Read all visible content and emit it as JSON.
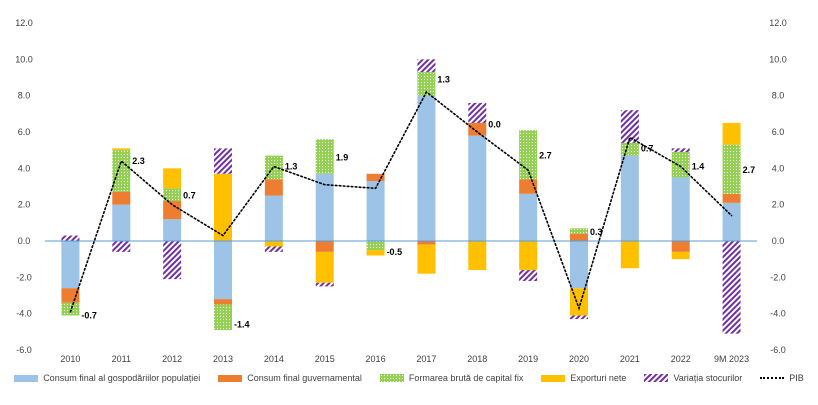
{
  "chart_data": {
    "type": "bar",
    "stacked": true,
    "categories": [
      "2010",
      "2011",
      "2012",
      "2013",
      "2014",
      "2015",
      "2016",
      "2017",
      "2018",
      "2019",
      "2020",
      "2021",
      "2022",
      "9M 2023"
    ],
    "ylim": [
      -6,
      12
    ],
    "yticks": [
      "-6.0",
      "-4.0",
      "-2.0",
      "0.0",
      "2.0",
      "4.0",
      "6.0",
      "8.0",
      "10.0",
      "12.0"
    ],
    "ytick_values": [
      -6,
      -4,
      -2,
      0,
      2,
      4,
      6,
      8,
      10,
      12
    ],
    "grid": false,
    "legend_position": "bottom",
    "series": [
      {
        "name": "Consum final al gospodăriilor populației",
        "color": "#9dc3e6",
        "pattern": "solid",
        "values": [
          -2.6,
          2.0,
          1.2,
          -3.2,
          2.5,
          3.7,
          3.3,
          8.0,
          5.8,
          2.6,
          -2.6,
          4.7,
          3.5,
          2.1
        ]
      },
      {
        "name": "Consum final guvernamental",
        "color": "#ed7d31",
        "pattern": "solid",
        "values": [
          -0.8,
          0.7,
          1.0,
          -0.3,
          0.9,
          -0.6,
          0.4,
          -0.2,
          0.7,
          0.8,
          0.4,
          0.0,
          -0.6,
          0.5
        ]
      },
      {
        "name": "Formarea brută de capital fix",
        "color": "#92d050",
        "pattern": "dots",
        "values": [
          -0.7,
          2.3,
          0.7,
          -1.4,
          1.3,
          1.9,
          -0.5,
          1.3,
          0.0,
          2.7,
          0.3,
          0.7,
          1.4,
          2.7
        ]
      },
      {
        "name": "Exporturi nete",
        "color": "#ffc000",
        "pattern": "solid",
        "values": [
          0.0,
          0.1,
          1.1,
          3.7,
          -0.3,
          -1.7,
          -0.3,
          -1.6,
          -1.6,
          -1.6,
          -1.5,
          -1.5,
          -0.4,
          1.2
        ]
      },
      {
        "name": "Variația stocurilor",
        "color": "#7030a0",
        "pattern": "hatch",
        "values": [
          0.3,
          -0.6,
          -2.1,
          1.4,
          -0.3,
          -0.2,
          0.0,
          0.7,
          1.1,
          -0.6,
          -0.2,
          1.8,
          0.2,
          -5.1
        ]
      }
    ],
    "line_series": {
      "name": "PIB",
      "color": "#000000",
      "style": "dotted",
      "values": [
        -3.9,
        4.4,
        2.0,
        0.3,
        4.1,
        3.1,
        2.9,
        8.2,
        6.0,
        3.9,
        -3.7,
        5.7,
        4.1,
        1.4
      ]
    },
    "data_labels": [
      "-0.7",
      "2.3",
      "0.7",
      "-1.4",
      "1.3",
      "1.9",
      "-0.5",
      "1.3",
      "0.0",
      "2.7",
      "0.3",
      "0.7",
      "1.4",
      "2.7"
    ],
    "data_label_values": [
      -4.1,
      4.4,
      2.5,
      -4.6,
      4.1,
      4.6,
      -0.6,
      8.9,
      6.4,
      4.7,
      0.5,
      5.1,
      4.1,
      3.9
    ]
  }
}
